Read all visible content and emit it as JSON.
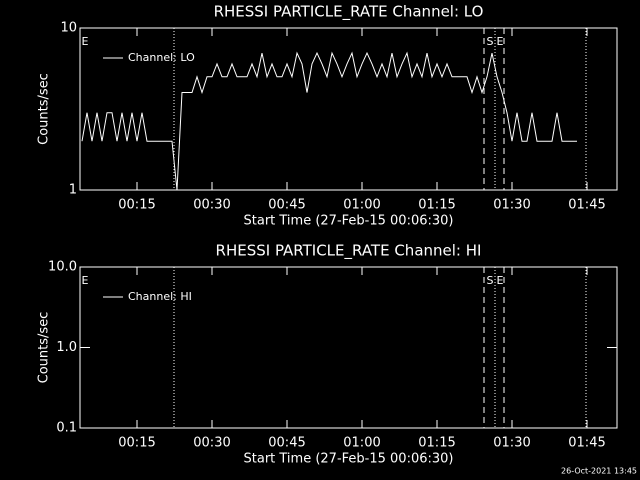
{
  "chart_data": [
    {
      "type": "line",
      "title": "RHESSI PARTICLE_RATE Channel: LO",
      "x_label": "Start Time (27-Feb-15 00:06:30)",
      "y_label": "Counts/sec",
      "x": [
        4,
        5,
        6,
        7,
        8,
        9,
        10,
        11,
        12,
        13,
        14,
        15,
        16,
        17,
        18,
        19,
        20,
        21,
        22,
        23,
        24,
        25,
        26,
        27,
        28,
        29,
        30,
        31,
        32,
        33,
        34,
        35,
        36,
        37,
        38,
        39,
        40,
        41,
        42,
        43,
        44,
        45,
        46,
        47,
        48,
        49,
        50,
        51,
        52,
        53,
        54,
        55,
        56,
        57,
        58,
        59,
        60,
        61,
        62,
        63,
        64,
        65,
        66,
        67,
        68,
        69,
        70,
        71,
        72,
        73,
        74,
        75,
        76,
        77,
        78,
        79,
        80,
        81,
        82,
        83,
        84,
        85,
        86,
        87,
        88,
        89,
        90,
        91,
        92,
        93,
        94,
        95,
        96,
        97,
        98,
        99,
        100,
        101,
        102,
        103
      ],
      "series": [
        {
          "name": "Channel: LO",
          "color": "#ffffff",
          "values": [
            2,
            3,
            2,
            3,
            2,
            3,
            3,
            2,
            3,
            2,
            3,
            2,
            3,
            2,
            2,
            2,
            2,
            2,
            2,
            1,
            4,
            4,
            4,
            5,
            4,
            5,
            5,
            6,
            5,
            5,
            6,
            5,
            5,
            5,
            6,
            5,
            7,
            5,
            6,
            5,
            5,
            6,
            5,
            7,
            6,
            4,
            6,
            7,
            6,
            5,
            7,
            6,
            5,
            6,
            7,
            5,
            6,
            7,
            6,
            5,
            6,
            5,
            7,
            5,
            6,
            7,
            5,
            6,
            5,
            7,
            5,
            6,
            5,
            6,
            5,
            5,
            5,
            5,
            4,
            5,
            4,
            5,
            7,
            5,
            4,
            3,
            2,
            3,
            2,
            2,
            3,
            2,
            2,
            2,
            2,
            3,
            2,
            2,
            2,
            2
          ]
        }
      ],
      "xlim": [
        3.6,
        111
      ],
      "xticks": [
        {
          "value": 15,
          "label": "00:15"
        },
        {
          "value": 30,
          "label": "00:30"
        },
        {
          "value": 45,
          "label": "00:45"
        },
        {
          "value": 60,
          "label": "01:00"
        },
        {
          "value": 75,
          "label": "01:15"
        },
        {
          "value": 90,
          "label": "01:30"
        },
        {
          "value": 105,
          "label": "01:45"
        }
      ],
      "ylim": [
        1,
        10
      ],
      "yticks": [
        1,
        10
      ],
      "log_y": true,
      "vlines": [
        {
          "x": 22.4,
          "style": "dotted"
        },
        {
          "x": 84.4,
          "style": "dashed"
        },
        {
          "x": 86.6,
          "style": "dotted"
        },
        {
          "x": 88.4,
          "style": "dashed"
        },
        {
          "x": 104.8,
          "style": "dotted"
        }
      ],
      "annotations": [
        "E",
        "S",
        "E"
      ]
    },
    {
      "type": "line",
      "title": "RHESSI PARTICLE_RATE Channel: HI",
      "x_label": "Start Time (27-Feb-15 00:06:30)",
      "y_label": "Counts/sec",
      "x": [],
      "series": [
        {
          "name": "Channel: HI",
          "color": "#ffffff",
          "values": []
        }
      ],
      "xlim": [
        3.6,
        111
      ],
      "xticks": [
        {
          "value": 15,
          "label": "00:15"
        },
        {
          "value": 30,
          "label": "00:30"
        },
        {
          "value": 45,
          "label": "00:45"
        },
        {
          "value": 60,
          "label": "01:00"
        },
        {
          "value": 75,
          "label": "01:15"
        },
        {
          "value": 90,
          "label": "01:30"
        },
        {
          "value": 105,
          "label": "01:45"
        }
      ],
      "ylim": [
        0.1,
        10
      ],
      "yticks": [
        0.1,
        {
          "value": 1,
          "label": "1.0"
        },
        {
          "value": 10,
          "label": "10.0"
        }
      ],
      "log_y": true,
      "vlines": [
        {
          "x": 22.4,
          "style": "dotted"
        },
        {
          "x": 84.4,
          "style": "dashed"
        },
        {
          "x": 86.6,
          "style": "dotted"
        },
        {
          "x": 88.4,
          "style": "dashed"
        },
        {
          "x": 104.8,
          "style": "dotted"
        }
      ],
      "annotations": [
        "E",
        "S",
        "E"
      ]
    }
  ],
  "footer": "26-Oct-2021 13:45"
}
